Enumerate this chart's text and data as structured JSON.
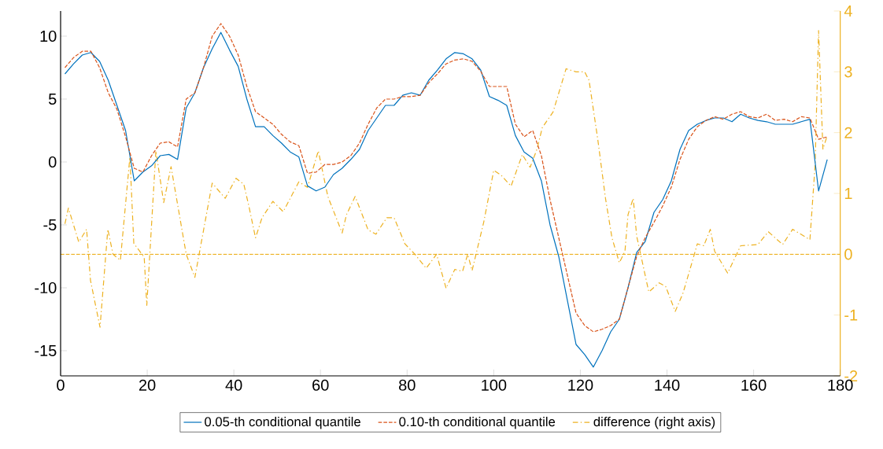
{
  "chart_data": {
    "type": "line",
    "xlim": [
      0,
      180
    ],
    "xticks": [
      0,
      20,
      40,
      60,
      80,
      100,
      120,
      140,
      160,
      180
    ],
    "ylim": [
      -17,
      12
    ],
    "yticks": [
      -15,
      -10,
      -5,
      0,
      5,
      10
    ],
    "y2lim": [
      -2,
      4
    ],
    "y2ticks": [
      -2,
      -1,
      0,
      1,
      2,
      3,
      4
    ],
    "grid": false,
    "legend": "bottom",
    "marker": "none",
    "ref_lines": [
      {
        "axis": "y2",
        "value": 0,
        "color": "#edb120",
        "line_style": "dashed"
      }
    ],
    "series": [
      {
        "name": "0.05-th conditional quantile",
        "color": "#0072bd",
        "line_style": "solid",
        "x": [
          1,
          3,
          5,
          7,
          9,
          11,
          13,
          15,
          17,
          19,
          21,
          23,
          25,
          27,
          29,
          31,
          33,
          35,
          37,
          39,
          41,
          43,
          45,
          47,
          49,
          51,
          53,
          55,
          57,
          59,
          61,
          63,
          65,
          67,
          69,
          71,
          73,
          75,
          77,
          79,
          81,
          83,
          85,
          87,
          89,
          91,
          93,
          95,
          97,
          99,
          101,
          103,
          105,
          107,
          109,
          111,
          113,
          115,
          117,
          119,
          121,
          123,
          125,
          127,
          129,
          131,
          133,
          135,
          137,
          139,
          141,
          143,
          145,
          147,
          149,
          151,
          153,
          155,
          157,
          159,
          161,
          163,
          165,
          167,
          169,
          171,
          173,
          175,
          177
        ],
        "values": [
          7.0,
          7.8,
          8.5,
          8.7,
          8.0,
          6.5,
          4.5,
          2.5,
          -1.5,
          -0.8,
          -0.3,
          0.5,
          0.6,
          0.2,
          4.3,
          5.5,
          7.5,
          9.0,
          10.3,
          8.9,
          7.6,
          5.0,
          2.8,
          2.8,
          2.1,
          1.5,
          0.8,
          0.4,
          -1.9,
          -2.3,
          -2.0,
          -1.0,
          -0.5,
          0.2,
          1.0,
          2.5,
          3.5,
          4.5,
          4.5,
          5.3,
          5.5,
          5.3,
          6.5,
          7.3,
          8.2,
          8.7,
          8.6,
          8.2,
          7.3,
          5.2,
          4.9,
          4.5,
          2.1,
          0.8,
          0.3,
          -1.5,
          -5.0,
          -7.5,
          -11.0,
          -14.5,
          -15.3,
          -16.3,
          -15.0,
          -13.5,
          -12.5,
          -10.0,
          -7.2,
          -6.3,
          -4.0,
          -3.0,
          -1.5,
          1.0,
          2.5,
          3.0,
          3.3,
          3.5,
          3.5,
          3.2,
          3.8,
          3.5,
          3.3,
          3.2,
          3.0,
          3.0,
          3.0,
          3.2,
          3.4,
          -2.3,
          0.2
        ]
      },
      {
        "name": "0.10-th conditional quantile",
        "color": "#d95319",
        "line_style": "dashed",
        "x": [
          1,
          3,
          5,
          7,
          9,
          11,
          13,
          15,
          17,
          19,
          21,
          23,
          25,
          27,
          29,
          31,
          33,
          35,
          37,
          39,
          41,
          43,
          45,
          47,
          49,
          51,
          53,
          55,
          57,
          59,
          61,
          63,
          65,
          67,
          69,
          71,
          73,
          75,
          77,
          79,
          81,
          83,
          85,
          87,
          89,
          91,
          93,
          95,
          97,
          99,
          101,
          103,
          105,
          107,
          109,
          111,
          113,
          115,
          117,
          119,
          121,
          123,
          125,
          127,
          129,
          131,
          133,
          135,
          137,
          139,
          141,
          143,
          145,
          147,
          149,
          151,
          153,
          155,
          157,
          159,
          161,
          163,
          165,
          167,
          169,
          171,
          173,
          175,
          177
        ],
        "values": [
          7.5,
          8.3,
          8.8,
          8.8,
          7.5,
          5.5,
          4.2,
          2.0,
          -0.5,
          -0.8,
          0.5,
          1.5,
          1.6,
          1.2,
          5.0,
          5.5,
          7.5,
          10.0,
          11.0,
          10.0,
          8.5,
          6.0,
          4.0,
          3.5,
          3.0,
          2.2,
          1.6,
          1.3,
          -0.9,
          -0.8,
          -0.2,
          -0.2,
          0.0,
          0.5,
          1.5,
          3.0,
          4.3,
          5.0,
          5.0,
          5.2,
          5.2,
          5.3,
          6.3,
          7.0,
          7.8,
          8.1,
          8.2,
          8.0,
          7.2,
          6.0,
          6.0,
          6.0,
          3.0,
          2.0,
          2.5,
          0.5,
          -3.0,
          -6.0,
          -9.0,
          -12.0,
          -13.0,
          -13.5,
          -13.3,
          -13.0,
          -12.5,
          -10.0,
          -7.5,
          -6.0,
          -4.8,
          -3.5,
          -2.0,
          0.2,
          1.8,
          2.8,
          3.3,
          3.6,
          3.4,
          3.8,
          4.0,
          3.6,
          3.5,
          3.8,
          3.3,
          3.4,
          3.2,
          3.6,
          3.5,
          1.8,
          2.0
        ]
      },
      {
        "name": "difference (right axis)",
        "color": "#edb120",
        "line_style": "dashdot",
        "axis": "y2",
        "x": [
          1,
          1.8,
          4.2,
          6,
          6.9,
          9.1,
          10.9,
          12.1,
          13.8,
          16,
          16.9,
          19.3,
          19.9,
          22,
          23.8,
          25.5,
          29,
          31,
          35,
          38,
          40.5,
          42.3,
          43.5,
          45,
          46.5,
          49,
          51.4,
          55,
          57,
          59.5,
          61.7,
          65,
          66,
          68,
          71,
          72.8,
          75.3,
          77,
          79.5,
          81.8,
          84.4,
          86.8,
          89,
          91,
          92.8,
          94,
          95,
          97.7,
          100,
          101.7,
          104,
          106.6,
          108.4,
          110,
          111.2,
          113.7,
          116.7,
          119,
          121,
          122,
          124,
          125.8,
          127.3,
          129,
          130.3,
          131,
          132.2,
          133,
          135.8,
          138.2,
          139.7,
          141.9,
          143.7,
          146,
          147,
          148.5,
          150,
          151,
          154,
          157,
          161,
          163.4,
          166.7,
          169,
          173,
          174.2,
          175,
          176,
          177
        ],
        "values": [
          0.5,
          0.76,
          0.2,
          0.41,
          -0.43,
          -1.2,
          0.41,
          0.0,
          -0.1,
          1.6,
          0.18,
          -0.05,
          -0.84,
          1.7,
          0.85,
          1.44,
          0.0,
          -0.38,
          1.17,
          0.92,
          1.25,
          1.15,
          0.78,
          0.27,
          0.6,
          0.87,
          0.7,
          1.19,
          1.1,
          1.7,
          0.95,
          0.35,
          0.65,
          0.95,
          0.4,
          0.33,
          0.6,
          0.6,
          0.17,
          0.0,
          -0.23,
          0.0,
          -0.56,
          -0.25,
          -0.28,
          0.0,
          -0.27,
          0.53,
          1.38,
          1.3,
          1.12,
          1.64,
          1.43,
          1.73,
          2.08,
          2.34,
          3.05,
          3.0,
          3.0,
          2.86,
          1.9,
          0.92,
          0.27,
          -0.14,
          0.05,
          0.65,
          0.92,
          0.3,
          -0.62,
          -0.47,
          -0.53,
          -0.94,
          -0.64,
          -0.08,
          0.17,
          0.14,
          0.41,
          0.05,
          -0.31,
          0.14,
          0.16,
          0.37,
          0.16,
          0.41,
          0.24,
          1.47,
          3.68,
          1.73,
          1.95
        ]
      }
    ]
  }
}
